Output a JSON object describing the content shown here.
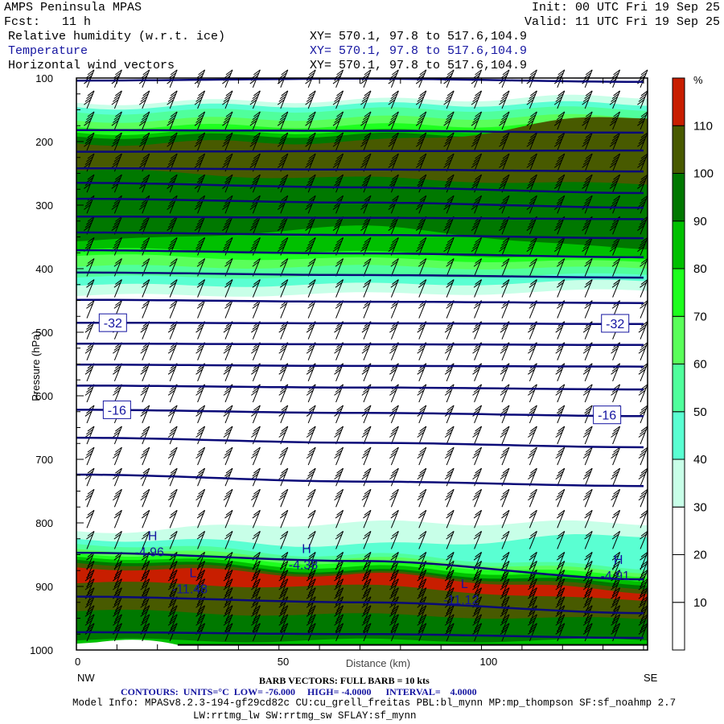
{
  "header": {
    "title": "AMPS Peninsula MPAS",
    "init": "Init: 00 UTC Fri 19 Sep 25",
    "fcst": "Fcst:   11 h",
    "valid": "Valid: 11 UTC Fri 19 Sep 25",
    "fields": [
      {
        "name": "Relative humidity (w.r.t. ice)",
        "xy": "XY= 570.1, 97.8 to 517.6,104.9"
      },
      {
        "name": "Temperature",
        "xy": "XY= 570.1, 97.8 to 517.6,104.9"
      },
      {
        "name": "Horizontal wind vectors",
        "xy": "XY= 570.1, 97.8 to 517.6,104.9"
      }
    ]
  },
  "footer": {
    "barb": "BARB VECTORS: FULL BARB = 10 kts",
    "contours": "CONTOURS:  UNITS=°C  LOW= -76.000     HIGH= -4.0000      INTERVAL=    4.0000",
    "model_info": "Model Info: MPASv8.2.3-194-gf29cd82c CU:cu_grell_freitas PBL:bl_mynn MP:mp_thompson SF:sf_noahmp 2.7",
    "model_info2": "LW:rrtmg_lw SW:rrtmg_sw SFLAY:sf_mynn"
  },
  "chart_data": {
    "type": "heatmap",
    "title": "Relative humidity (w.r.t. ice) / Temperature / Horizontal wind vectors cross-section",
    "xlabel": "Distance (km)",
    "ylabel": "Pressure (hPa)",
    "xlim": [
      0,
      141
    ],
    "ylim": [
      1000,
      100
    ],
    "x_ticks": [
      "0",
      "50",
      "100"
    ],
    "y_ticks": [
      "100",
      "200",
      "300",
      "400",
      "500",
      "600",
      "700",
      "800",
      "900",
      "1000"
    ],
    "x_ends": [
      "NW",
      "SE"
    ],
    "colorbar": {
      "unit": "%",
      "levels": [
        0,
        10,
        20,
        30,
        40,
        50,
        60,
        70,
        80,
        90,
        100,
        110,
        120
      ],
      "labels": [
        "10",
        "20",
        "30",
        "40",
        "50",
        "60",
        "70",
        "80",
        "90",
        "100",
        "110"
      ],
      "colors": [
        "#ffffff",
        "#ffffff",
        "#ffffff",
        "#c8ffe8",
        "#5affd2",
        "#50ff9c",
        "#5aff5a",
        "#1eff1e",
        "#00c000",
        "#007800",
        "#485a00",
        "#c81e00"
      ]
    },
    "rh_regions_x_km": [
      0,
      70,
      141
    ],
    "rh_regions": [
      {
        "min": 30,
        "top": [
          139,
          135,
          129
        ],
        "bottom": [
          443,
          440,
          435
        ]
      },
      {
        "min": 40,
        "top": [
          146,
          142,
          140
        ],
        "bottom": [
          427,
          425,
          420
        ]
      },
      {
        "min": 50,
        "top": [
          154,
          150,
          148
        ],
        "bottom": [
          414,
          412,
          410
        ]
      },
      {
        "min": 60,
        "top": [
          167,
          163,
          160
        ],
        "bottom": [
          397,
          397,
          400
        ]
      },
      {
        "min": 70,
        "top": [
          177,
          175,
          172
        ],
        "bottom": [
          380,
          385,
          390
        ]
      },
      {
        "min": 80,
        "top": [
          186,
          184,
          180
        ],
        "bottom": [
          370,
          375,
          385
        ]
      },
      {
        "min": 90,
        "top": [
          192,
          190,
          186
        ],
        "bottom": [
          357,
          335,
          370
        ]
      },
      {
        "min": 100,
        "top": [
          203,
          200,
          160
        ],
        "bottom": [
          246,
          258,
          268
        ]
      },
      {
        "min": 30,
        "top": [
          813,
          800,
          800
        ],
        "bottom": [
          1000,
          1000,
          1000
        ]
      },
      {
        "min": 40,
        "top": [
          825,
          835,
          819
        ],
        "bottom": [
          1000,
          1000,
          1000
        ]
      },
      {
        "min": 50,
        "top": [
          833,
          851,
          870
        ],
        "bottom": [
          1000,
          1000,
          1000
        ]
      },
      {
        "min": 60,
        "top": [
          841,
          857,
          876
        ],
        "bottom": [
          1000,
          1000,
          1000
        ]
      },
      {
        "min": 70,
        "top": [
          848,
          863,
          882
        ],
        "bottom": [
          1000,
          1000,
          1000
        ]
      },
      {
        "min": 80,
        "top": [
          853,
          870,
          889
        ],
        "bottom": [
          995,
          995,
          995
        ]
      },
      {
        "min": 90,
        "top": [
          858,
          876,
          895
        ],
        "bottom": [
          985,
          985,
          985
        ]
      },
      {
        "min": 100,
        "top": [
          863,
          879,
          901
        ],
        "bottom": [
          939,
          945,
          952
        ]
      },
      {
        "min": 110,
        "top": [
          870,
          882,
          908
        ],
        "bottom": [
          895,
          900,
          923
        ]
      }
    ],
    "temperature_contours": [
      {
        "level": -76,
        "p": [
          104,
          101,
          106
        ]
      },
      {
        "level": -72,
        "p": [
          182,
          183,
          186
        ]
      },
      {
        "level": -68,
        "p": [
          216,
          215,
          214
        ]
      },
      {
        "level": -64,
        "p": [
          242,
          244,
          247
        ]
      },
      {
        "level": -60,
        "p": [
          265,
          272,
          281
        ]
      },
      {
        "level": -56,
        "p": [
          290,
          296,
          304
        ]
      },
      {
        "level": -52,
        "p": [
          318,
          320,
          322
        ]
      },
      {
        "level": -48,
        "p": [
          343,
          347,
          352
        ]
      },
      {
        "level": -44,
        "p": [
          371,
          376,
          382
        ]
      },
      {
        "level": -40,
        "p": [
          406,
          410,
          414
        ]
      },
      {
        "level": -36,
        "p": [
          449,
          452,
          454
        ]
      },
      {
        "level": -32,
        "p": [
          485,
          486,
          487
        ]
      },
      {
        "level": -28,
        "p": [
          518,
          519,
          520
        ]
      },
      {
        "level": -24,
        "p": [
          551,
          553,
          554
        ]
      },
      {
        "level": -20,
        "p": [
          584,
          587,
          590
        ]
      },
      {
        "level": -16,
        "p": [
          622,
          627,
          632
        ]
      },
      {
        "level": -12,
        "p": [
          666,
          674,
          681
        ]
      },
      {
        "level": -8,
        "p": [
          724,
          735,
          742
        ]
      },
      {
        "level": -8,
        "p": [
          847,
          860,
          889
        ]
      },
      {
        "level": -8,
        "p": [
          916,
          925,
          942
        ]
      },
      {
        "level": -4,
        "p": [
          972,
          975,
          981
        ]
      }
    ],
    "contour_labels": [
      {
        "text": "-32",
        "x": 9,
        "p": 485
      },
      {
        "text": "-32",
        "x": 133,
        "p": 486
      },
      {
        "text": "-16",
        "x": 10,
        "p": 622
      },
      {
        "text": "-16",
        "x": 131,
        "p": 630
      }
    ],
    "extrema": [
      {
        "type": "H",
        "value": "-4.96",
        "x": 18,
        "p": 835
      },
      {
        "type": "H",
        "value": "-4.38",
        "x": 56,
        "p": 855
      },
      {
        "type": "H",
        "value": "-4.91",
        "x": 133,
        "p": 872
      },
      {
        "type": "L",
        "value": "-11.48",
        "x": 28,
        "p": 893
      },
      {
        "type": "L",
        "value": "-11.12",
        "x": 95,
        "p": 910
      }
    ],
    "wind_barbs_kts": [
      {
        "p": 130,
        "speed": 35
      },
      {
        "p": 200,
        "speed": 40
      },
      {
        "p": 300,
        "speed": 35
      },
      {
        "p": 400,
        "speed": 15
      },
      {
        "p": 500,
        "speed": 30
      },
      {
        "p": 600,
        "speed": 30
      },
      {
        "p": 700,
        "speed": 25
      },
      {
        "p": 800,
        "speed": 20
      },
      {
        "p": 900,
        "speed": 30
      },
      {
        "p": 980,
        "speed": 30
      }
    ]
  }
}
